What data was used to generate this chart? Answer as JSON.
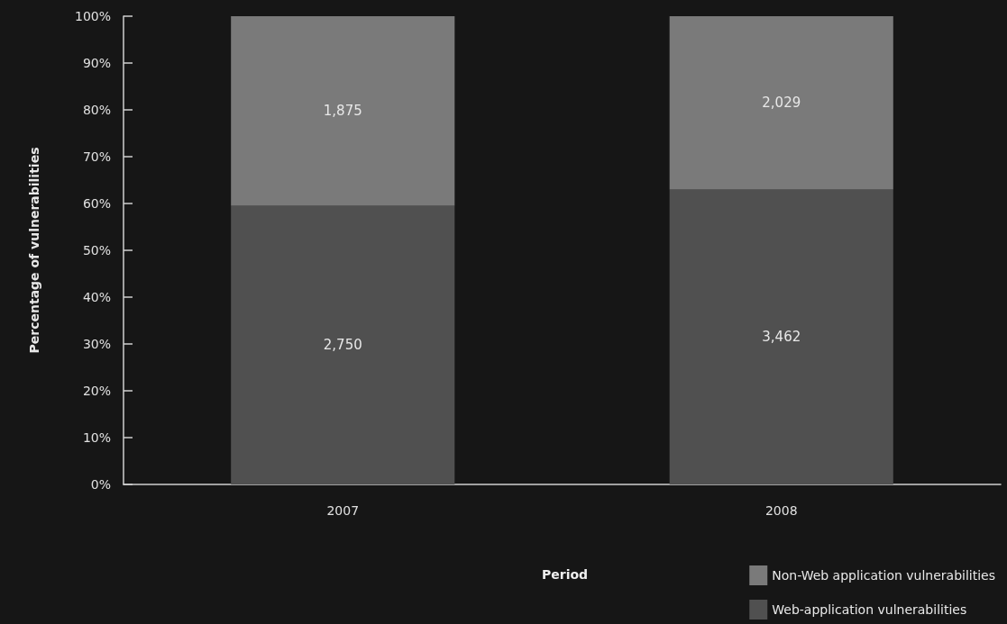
{
  "chart_data": {
    "type": "bar",
    "stacked": true,
    "categories": [
      "2007",
      "2008"
    ],
    "xlabel": "Period",
    "ylabel": "Percentage of vulnerabilities",
    "series": [
      {
        "name": "Web-application vulnerabilities",
        "color": "#505050",
        "values": [
          59.5,
          63.0
        ]
      },
      {
        "name": "Non-Web application vulnerabilities",
        "color": "#7a7a7a",
        "values": [
          40.5,
          37.0
        ]
      }
    ],
    "annotations": [
      "2,750",
      "3,462",
      "1,875",
      "2,029"
    ],
    "ylim": [
      0,
      100
    ],
    "yticks": [
      {
        "value": 0,
        "label": "0%"
      },
      {
        "value": 10,
        "label": "10%"
      },
      {
        "value": 20,
        "label": "20%"
      },
      {
        "value": 30,
        "label": "30%"
      },
      {
        "value": 40,
        "label": "40%"
      },
      {
        "value": 50,
        "label": "50%"
      },
      {
        "value": 60,
        "label": "60%"
      },
      {
        "value": 70,
        "label": "70%"
      },
      {
        "value": 80,
        "label": "80%"
      },
      {
        "value": 90,
        "label": "90%"
      },
      {
        "value": 100,
        "label": "100%"
      }
    ],
    "grid": false,
    "legend": "bottom right"
  }
}
